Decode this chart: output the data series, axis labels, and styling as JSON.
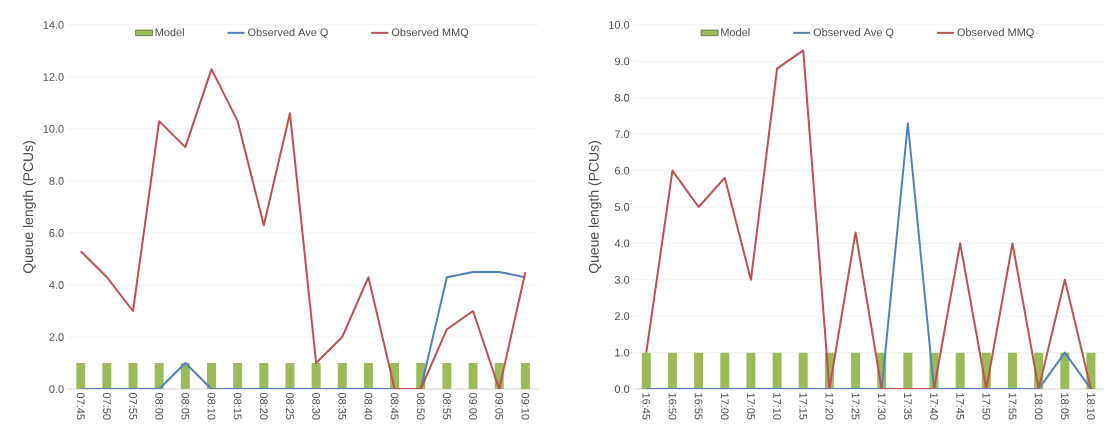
{
  "chart_data": [
    {
      "type": "line",
      "ylabel": "Queue length (PCUs)",
      "categories": [
        "07:45",
        "07:50",
        "07:55",
        "08:00",
        "08:05",
        "08:10",
        "08:15",
        "08:20",
        "08:25",
        "08:30",
        "08:35",
        "08:40",
        "08:45",
        "08:50",
        "08:55",
        "09:00",
        "09:05",
        "09:10"
      ],
      "series": [
        {
          "name": "Model",
          "type": "bar",
          "color": "#9bbb59",
          "values": [
            1,
            1,
            1,
            1,
            1,
            1,
            1,
            1,
            1,
            1,
            1,
            1,
            1,
            1,
            1,
            1,
            1,
            1
          ]
        },
        {
          "name": "Observed Ave Q",
          "color": "#4f81bd",
          "values": [
            0,
            0,
            0,
            0,
            1,
            0,
            0,
            0,
            0,
            0,
            0,
            0,
            0,
            0,
            4.3,
            4.5,
            4.5,
            4.3
          ]
        },
        {
          "name": "Observed MMQ",
          "color": "#c0504d",
          "values": [
            5.3,
            4.3,
            3.0,
            10.3,
            9.3,
            12.3,
            10.3,
            6.3,
            10.6,
            1.0,
            2.0,
            4.3,
            0,
            0,
            2.3,
            3.0,
            0,
            4.5
          ]
        }
      ],
      "ylim": [
        0,
        14
      ],
      "yticks": [
        {
          "value": 0,
          "label": "0.0"
        },
        {
          "value": 2,
          "label": "2.0"
        },
        {
          "value": 4,
          "label": "4.0"
        },
        {
          "value": 6,
          "label": "6.0"
        },
        {
          "value": 8,
          "label": "8.0"
        },
        {
          "value": 10,
          "label": "10.0"
        },
        {
          "value": 12,
          "label": "12.0"
        },
        {
          "value": 14,
          "label": "14.0"
        }
      ],
      "grid": "y",
      "legend": "top"
    },
    {
      "type": "line",
      "ylabel": "Queue length (PCUs)",
      "categories": [
        "16:45",
        "16:50",
        "16:55",
        "17:00",
        "17:05",
        "17:10",
        "17:15",
        "17:20",
        "17:25",
        "17:30",
        "17:35",
        "17:40",
        "17:45",
        "17:50",
        "17:55",
        "18:00",
        "18:05",
        "18:10"
      ],
      "series": [
        {
          "name": "Model",
          "type": "bar",
          "color": "#9bbb59",
          "values": [
            1,
            1,
            1,
            1,
            1,
            1,
            1,
            1,
            1,
            1,
            1,
            1,
            1,
            1,
            1,
            1,
            1,
            1
          ]
        },
        {
          "name": "Observed Ave Q",
          "color": "#4f81bd",
          "values": [
            0,
            0,
            0,
            0,
            0,
            0,
            0,
            0,
            0,
            0,
            7.3,
            0,
            0,
            0,
            0,
            0,
            1.0,
            0
          ]
        },
        {
          "name": "Observed MMQ",
          "color": "#c0504d",
          "values": [
            1.0,
            6.0,
            5.0,
            5.8,
            3.0,
            8.8,
            9.3,
            0,
            4.3,
            0,
            0,
            0,
            4.0,
            0,
            4.0,
            0,
            3.0,
            0
          ]
        }
      ],
      "ylim": [
        0,
        10
      ],
      "yticks": [
        {
          "value": 0,
          "label": "0.0"
        },
        {
          "value": 1,
          "label": "1.0"
        },
        {
          "value": 2,
          "label": "2.0"
        },
        {
          "value": 3,
          "label": "3.0"
        },
        {
          "value": 4,
          "label": "4.0"
        },
        {
          "value": 5,
          "label": "5.0"
        },
        {
          "value": 6,
          "label": "6.0"
        },
        {
          "value": 7,
          "label": "7.0"
        },
        {
          "value": 8,
          "label": "8.0"
        },
        {
          "value": 9,
          "label": "9.0"
        },
        {
          "value": 10,
          "label": "10.0"
        }
      ],
      "grid": "y",
      "legend": "top"
    }
  ]
}
